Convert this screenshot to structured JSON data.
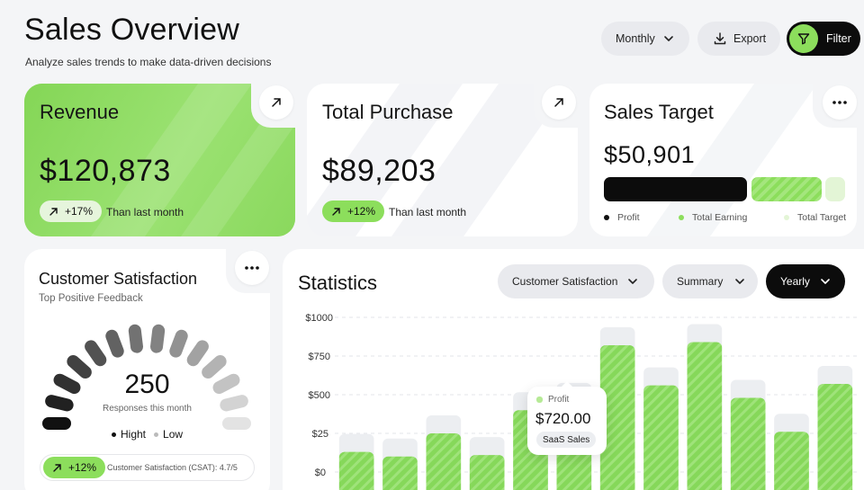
{
  "header": {
    "title": "Sales Overview",
    "subtitle": "Analyze sales trends to make data-driven decisions",
    "monthly_label": "Monthly",
    "export_label": "Export",
    "filter_label": "Filter"
  },
  "revenue": {
    "title": "Revenue",
    "value": "$120,873",
    "change": "+17%",
    "note": "Than last month"
  },
  "purchase": {
    "title": "Total Purchase",
    "value": "$89,203",
    "change": "+12%",
    "note": "Than last month"
  },
  "target": {
    "title": "Sales Target",
    "value": "$50,901",
    "legend": [
      "Profit",
      "Total Earning",
      "Total Target"
    ]
  },
  "csat": {
    "title": "Customer Satisfaction",
    "subtitle": "Top Positive Feedback",
    "value": "250",
    "value_caption": "Responses this month",
    "legend_high": "Hight",
    "legend_low": "Low",
    "change": "+12%",
    "footer": "Customer Satisfaction (CSAT): 4.7/5"
  },
  "statistics": {
    "title": "Statistics",
    "filter_metric": "Customer Satisfaction",
    "filter_view": "Summary",
    "filter_period": "Yearly",
    "tooltip": {
      "label": "Profit",
      "value": "$720.00",
      "tag": "SaaS Sales"
    }
  },
  "colors": {
    "accent": "#8cde5c",
    "dark": "#0c0c0c",
    "surface": "#ffffff",
    "background": "#f4f5f7"
  },
  "chart_data": {
    "type": "bar",
    "title": "",
    "ylim": [
      0,
      1000
    ],
    "yticks": [
      "$1000",
      "$750",
      "$500",
      "$25",
      "$0"
    ],
    "grid": true,
    "series": [
      {
        "values": [
          130,
          100,
          250,
          110,
          400,
          460,
          820,
          560,
          840,
          480,
          260,
          570
        ]
      }
    ]
  }
}
